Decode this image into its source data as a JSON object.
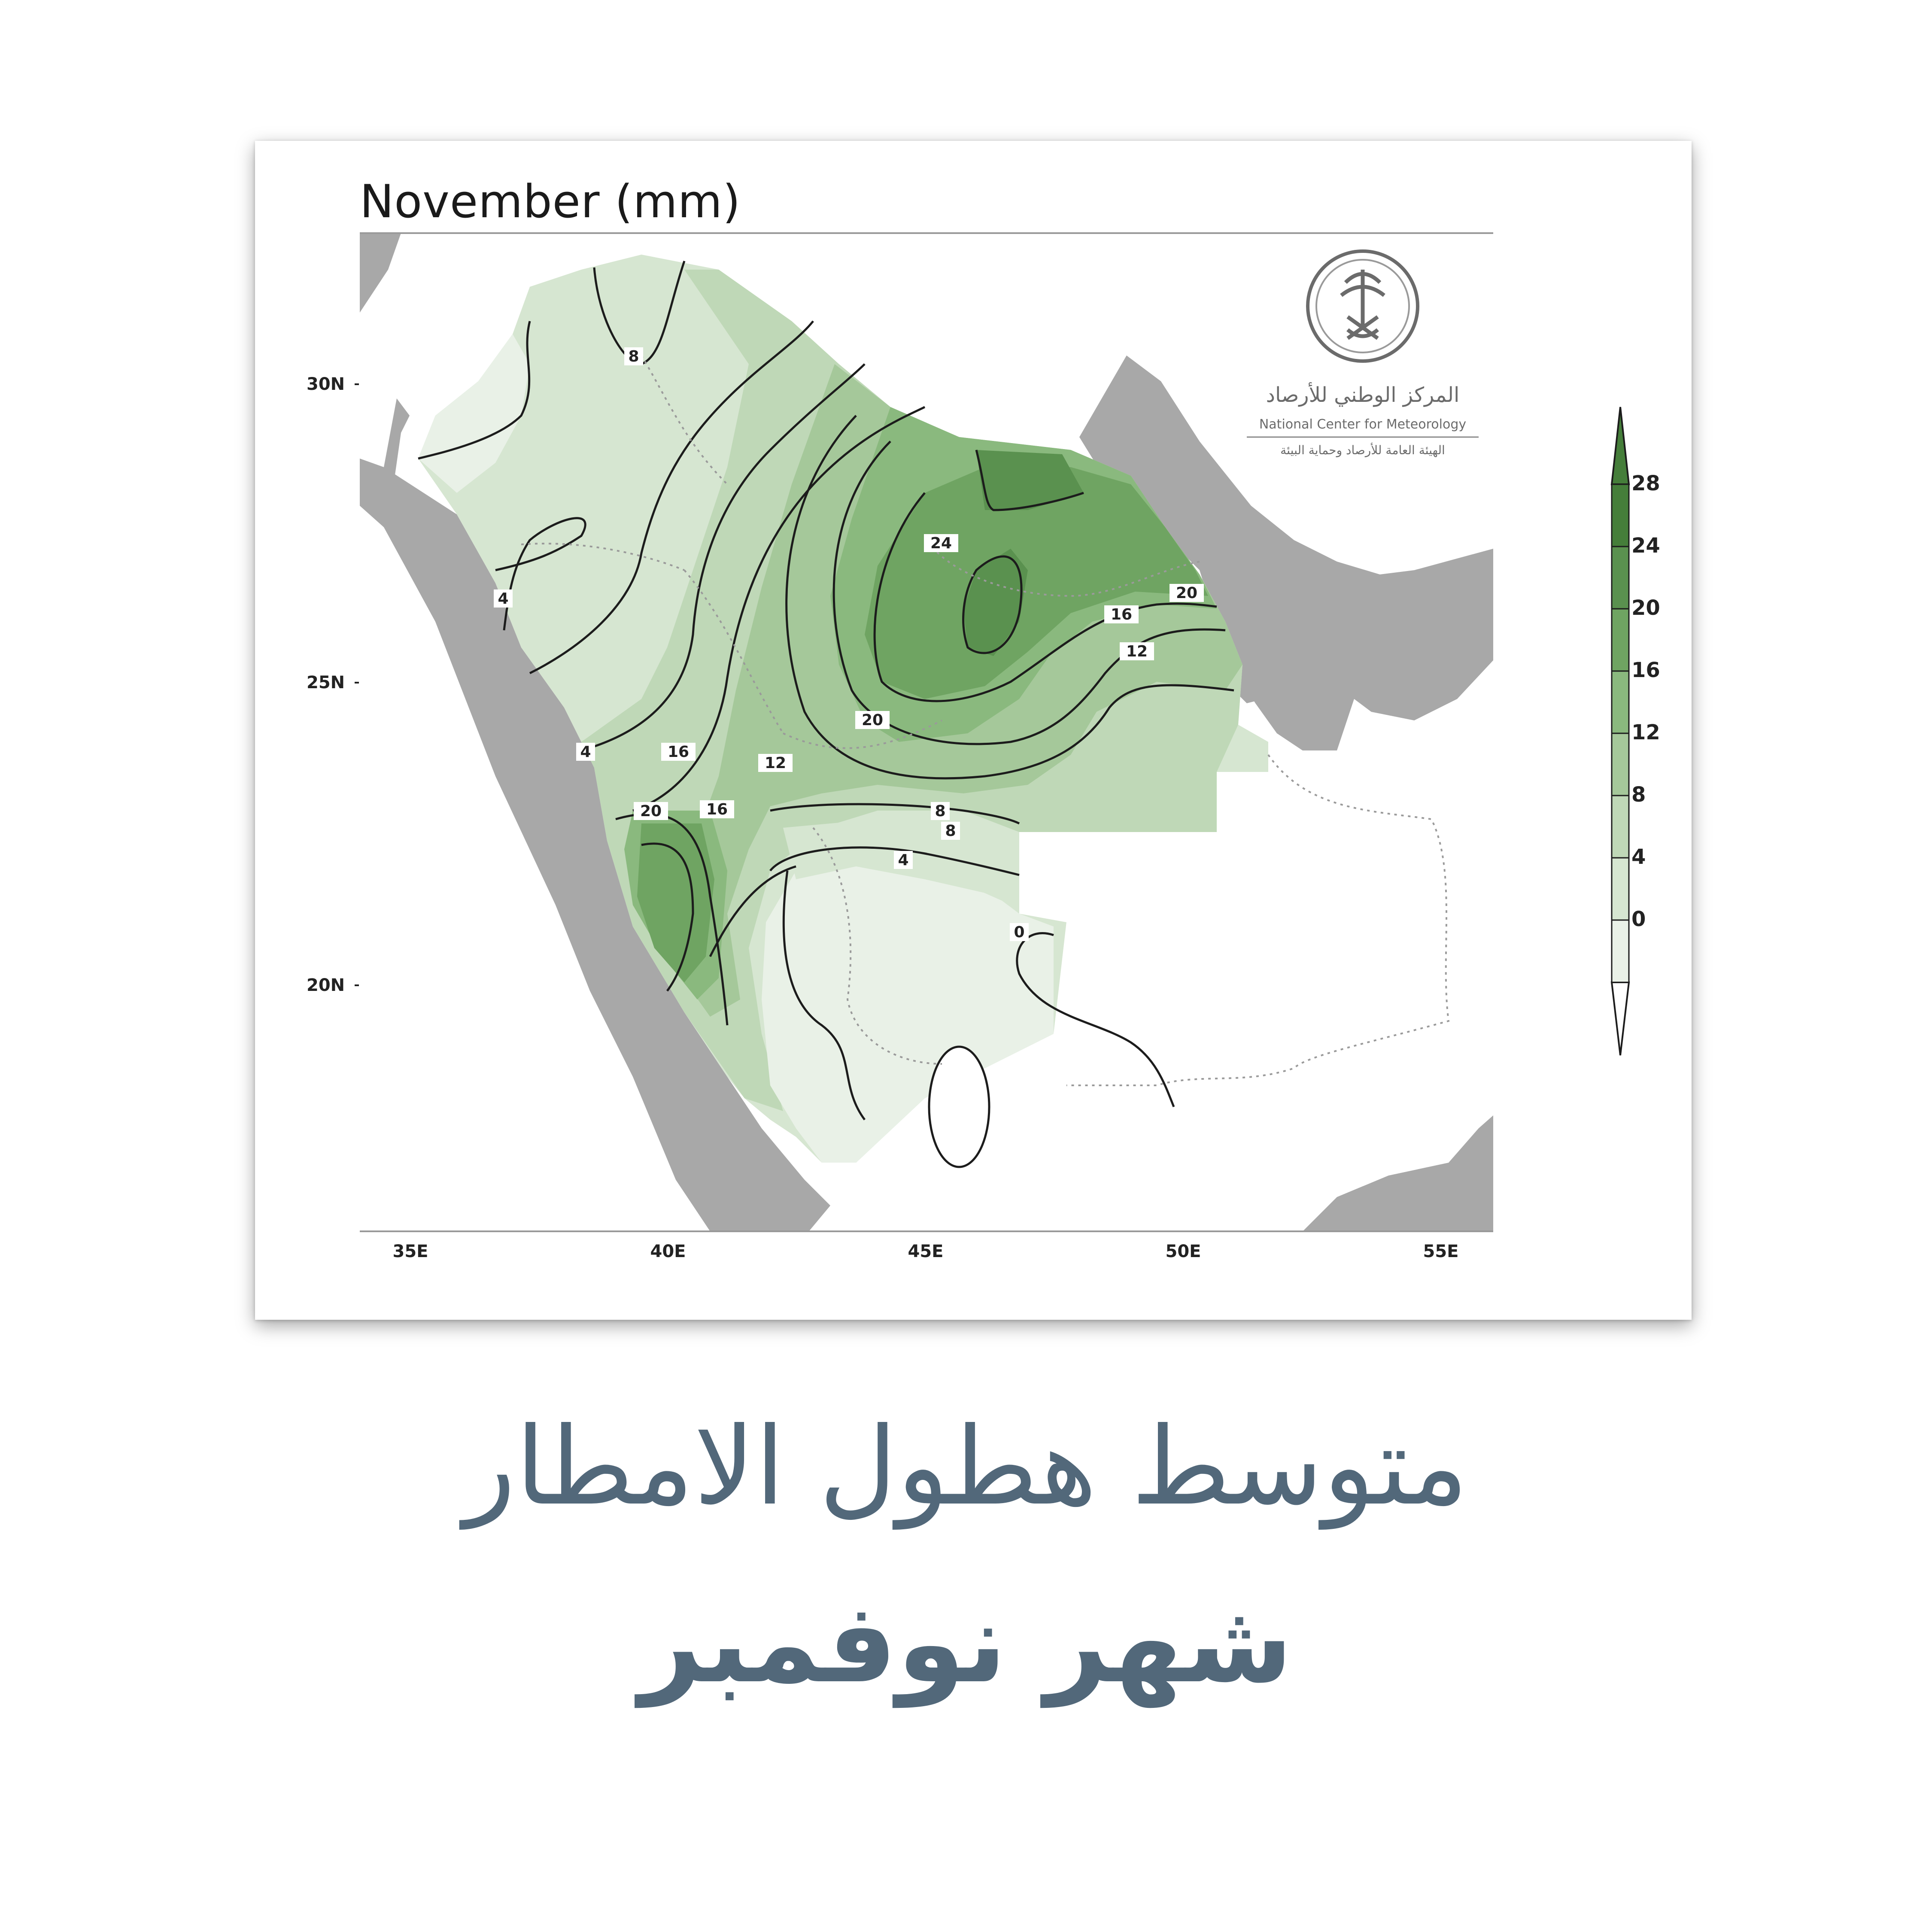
{
  "map": {
    "title": "November (mm)",
    "lat_labels": [
      "30N",
      "25N",
      "20N"
    ],
    "lon_labels": [
      "35E",
      "40E",
      "45E",
      "50E",
      "55E"
    ],
    "contour_labels": [
      "8",
      "4",
      "24",
      "20",
      "16",
      "12",
      "16",
      "12",
      "20",
      "8",
      "4",
      "4",
      "0",
      "16",
      "20",
      "8"
    ],
    "colorbar": {
      "levels": [
        "28",
        "24",
        "20",
        "16",
        "12",
        "8",
        "4",
        "0"
      ],
      "colors": [
        "#e9f1e7",
        "#d6e6d1",
        "#bfd8b7",
        "#a5c89a",
        "#8ab97e",
        "#6fa462",
        "#5a914f",
        "#457e3a"
      ]
    },
    "logo": {
      "org_ar": "المركز الوطني للأرصاد",
      "org_en": "National Center for Meteorology",
      "sub_ar": "الهيئة العامة للأرصاد وحماية البيئة"
    },
    "land_color": "#a8a8a8"
  },
  "caption": {
    "line1": "متوسط هطول الامطار",
    "line2": "شهر نوفمبر"
  }
}
